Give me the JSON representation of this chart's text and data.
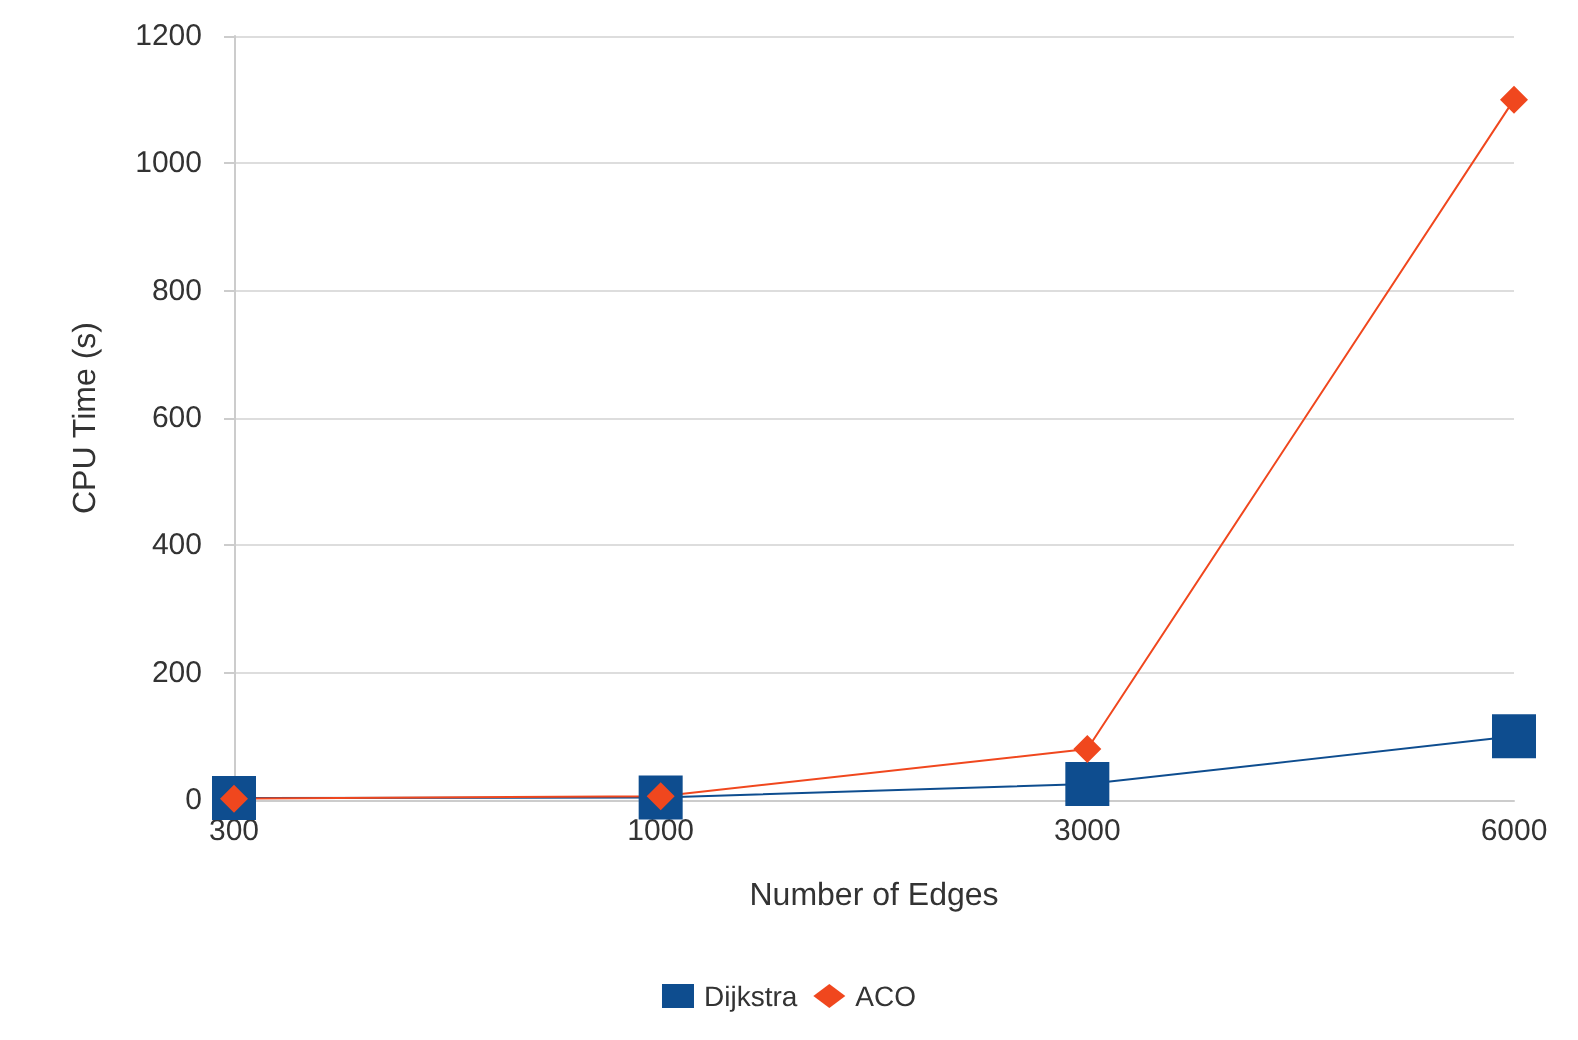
{
  "chart_data": {
    "type": "line",
    "xlabel": "Number of Edges",
    "ylabel": "CPU Time (s)",
    "categories": [
      "300",
      "1000",
      "3000",
      "6000"
    ],
    "series": [
      {
        "name": "Dijkstra",
        "color": "#0e4d8f",
        "marker": "square",
        "values": [
          3,
          4,
          25,
          100
        ]
      },
      {
        "name": "ACO",
        "color": "#f0471e",
        "marker": "diamond",
        "values": [
          2,
          6,
          80,
          1100
        ]
      }
    ],
    "ylim": [
      0,
      1200
    ],
    "yticks": [
      0,
      200,
      400,
      600,
      800,
      1000,
      1200
    ],
    "grid": "y",
    "legend": "bottom"
  }
}
